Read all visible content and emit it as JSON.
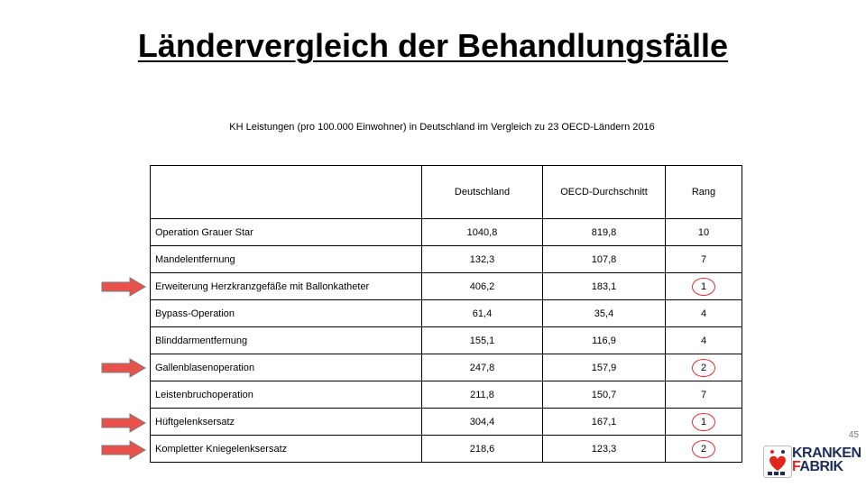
{
  "title": "Ländervergleich der Behandlungsfälle",
  "subtitle": "KH Leistungen (pro 100.000 Einwohner)  in Deutschland im Vergleich zu 23 OECD-Ländern 2016",
  "table": {
    "columns": [
      "",
      "Deutschland",
      "OECD-Durchschnitt",
      "Rang"
    ],
    "rows": [
      {
        "label": "Operation Grauer Star",
        "de": "1040,8",
        "oecd": "819,8",
        "rang": "10"
      },
      {
        "label": "Mandelentfernung",
        "de": "132,3",
        "oecd": "107,8",
        "rang": "7"
      },
      {
        "label": "Erweiterung Herzkranzgefäße mit Ballonkatheter",
        "de": "406,2",
        "oecd": "183,1",
        "rang": "1"
      },
      {
        "label": "Bypass-Operation",
        "de": "61,4",
        "oecd": "35,4",
        "rang": "4"
      },
      {
        "label": "Blinddarmentfernung",
        "de": "155,1",
        "oecd": "116,9",
        "rang": "4"
      },
      {
        "label": "Gallenblasenoperation",
        "de": "247,8",
        "oecd": "157,9",
        "rang": "2"
      },
      {
        "label": "Leistenbruchoperation",
        "de": "211,8",
        "oecd": "150,7",
        "rang": "7"
      },
      {
        "label": "Hüftgelenksersatz",
        "de": "304,4",
        "oecd": "167,1",
        "rang": "1"
      },
      {
        "label": "Kompletter Kniegelenksersatz",
        "de": "218,6",
        "oecd": "123,3",
        "rang": "2"
      }
    ]
  },
  "colors": {
    "arrow": "#e8524a",
    "ring": "#e03030",
    "logo_navy": "#1c2d5a",
    "logo_red": "#e1261c"
  },
  "page_number": "45",
  "logo": {
    "line1": "KRANKEN",
    "line2_a": "F",
    "line2_b": "ABRIK"
  }
}
